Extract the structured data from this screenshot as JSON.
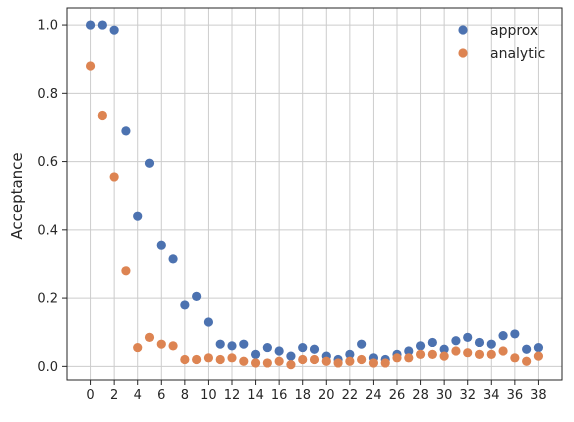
{
  "chart_data": {
    "type": "scatter",
    "title": "",
    "xlabel": "",
    "ylabel": "Acceptance",
    "xlim": [
      -2,
      40
    ],
    "ylim": [
      -0.04,
      1.05
    ],
    "x_ticks": [
      0,
      2,
      4,
      6,
      8,
      10,
      12,
      14,
      16,
      18,
      20,
      22,
      24,
      26,
      28,
      30,
      32,
      34,
      36,
      38
    ],
    "y_ticks": [
      0.0,
      0.2,
      0.4,
      0.6,
      0.8,
      1.0
    ],
    "grid": true,
    "legend_position": "top-right",
    "x": [
      0,
      1,
      2,
      3,
      4,
      5,
      6,
      7,
      8,
      9,
      10,
      11,
      12,
      13,
      14,
      15,
      16,
      17,
      18,
      19,
      20,
      21,
      22,
      23,
      24,
      25,
      26,
      27,
      28,
      29,
      30,
      31,
      32,
      33,
      34,
      35,
      36,
      37,
      38
    ],
    "series": [
      {
        "name": "approx",
        "color": "#4c72b0",
        "values": [
          1.0,
          1.0,
          0.985,
          0.69,
          0.44,
          0.595,
          0.355,
          0.315,
          0.18,
          0.205,
          0.13,
          0.065,
          0.06,
          0.065,
          0.035,
          0.055,
          0.045,
          0.03,
          0.055,
          0.05,
          0.03,
          0.02,
          0.035,
          0.065,
          0.025,
          0.02,
          0.035,
          0.045,
          0.06,
          0.07,
          0.05,
          0.075,
          0.085,
          0.07,
          0.065,
          0.09,
          0.095,
          0.05,
          0.055
        ]
      },
      {
        "name": "analytic",
        "color": "#dd8452",
        "values": [
          0.88,
          0.735,
          0.555,
          0.28,
          0.055,
          0.085,
          0.065,
          0.06,
          0.02,
          0.02,
          0.025,
          0.02,
          0.025,
          0.015,
          0.01,
          0.01,
          0.015,
          0.005,
          0.02,
          0.02,
          0.015,
          0.01,
          0.015,
          0.02,
          0.01,
          0.01,
          0.025,
          0.025,
          0.035,
          0.035,
          0.03,
          0.045,
          0.04,
          0.035,
          0.035,
          0.045,
          0.025,
          0.015,
          0.03
        ]
      }
    ]
  }
}
